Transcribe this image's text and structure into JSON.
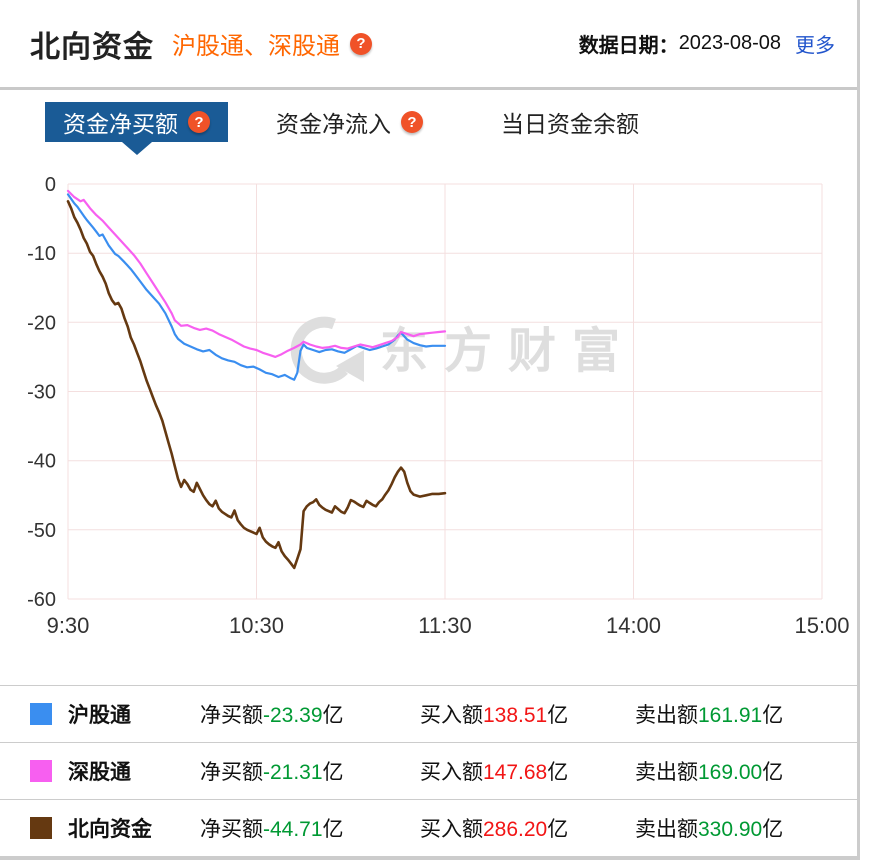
{
  "header": {
    "title": "北向资金",
    "subtitle": "沪股通、深股通",
    "date_label": "数据日期：",
    "date_value": "2023-08-08",
    "more_label": "更多"
  },
  "icons": {
    "help": "?"
  },
  "tabs": {
    "tab1": {
      "label": "资金净买额",
      "active": true
    },
    "tab2": {
      "label": "资金净流入",
      "active": false
    },
    "tab3": {
      "label": "当日资金余额",
      "active": false
    }
  },
  "chart_data": {
    "type": "line",
    "watermark": "东方财富",
    "ylim": [
      -60,
      0
    ],
    "xlim": [
      0,
      240
    ],
    "y_ticks": [
      0,
      -10,
      -20,
      -30,
      -40,
      -50,
      -60
    ],
    "x_ticks": [
      {
        "t": 0,
        "label": "9:30"
      },
      {
        "t": 60,
        "label": "10:30"
      },
      {
        "t": 120,
        "label": "11:30"
      },
      {
        "t": 180,
        "label": "14:00"
      },
      {
        "t": 240,
        "label": "15:00"
      }
    ],
    "unit": "亿",
    "series": [
      {
        "name": "沪股通",
        "color": "#3a8ef0",
        "width": 2.2,
        "points": [
          [
            0,
            -1.5
          ],
          [
            2,
            -2.8
          ],
          [
            3,
            -3.3
          ],
          [
            5,
            -4.6
          ],
          [
            6,
            -5.2
          ],
          [
            8,
            -6.3
          ],
          [
            9,
            -6.9
          ],
          [
            10,
            -7.5
          ],
          [
            11,
            -7.3
          ],
          [
            13,
            -8.9
          ],
          [
            15,
            -10.1
          ],
          [
            16,
            -10.4
          ],
          [
            18,
            -11.3
          ],
          [
            20,
            -12.3
          ],
          [
            21,
            -12.9
          ],
          [
            23,
            -14.1
          ],
          [
            25,
            -15.3
          ],
          [
            27,
            -16.3
          ],
          [
            29,
            -17.3
          ],
          [
            31,
            -18.7
          ],
          [
            33,
            -20.6
          ],
          [
            34,
            -21.7
          ],
          [
            35,
            -22.4
          ],
          [
            37,
            -23.1
          ],
          [
            39,
            -23.5
          ],
          [
            41,
            -23.9
          ],
          [
            43,
            -24.2
          ],
          [
            45,
            -24.0
          ],
          [
            47,
            -24.7
          ],
          [
            49,
            -25.2
          ],
          [
            51,
            -25.5
          ],
          [
            53,
            -25.7
          ],
          [
            55,
            -26.2
          ],
          [
            57,
            -26.5
          ],
          [
            59,
            -26.4
          ],
          [
            61,
            -26.8
          ],
          [
            63,
            -27.3
          ],
          [
            65,
            -27.5
          ],
          [
            67,
            -27.9
          ],
          [
            69,
            -27.6
          ],
          [
            71,
            -28.1
          ],
          [
            72,
            -28.3
          ],
          [
            73,
            -27.3
          ],
          [
            74,
            -24.1
          ],
          [
            75,
            -23.2
          ],
          [
            76,
            -23.7
          ],
          [
            78,
            -24.0
          ],
          [
            80,
            -24.3
          ],
          [
            82,
            -24.0
          ],
          [
            84,
            -23.9
          ],
          [
            86,
            -24.2
          ],
          [
            88,
            -24.4
          ],
          [
            90,
            -23.9
          ],
          [
            92,
            -23.4
          ],
          [
            94,
            -23.7
          ],
          [
            96,
            -24.0
          ],
          [
            98,
            -23.8
          ],
          [
            100,
            -23.5
          ],
          [
            102,
            -23.2
          ],
          [
            104,
            -22.5
          ],
          [
            105,
            -21.9
          ],
          [
            106,
            -21.5
          ],
          [
            107,
            -22.0
          ],
          [
            108,
            -22.5
          ],
          [
            110,
            -23.0
          ],
          [
            112,
            -23.3
          ],
          [
            114,
            -23.5
          ],
          [
            116,
            -23.4
          ],
          [
            118,
            -23.4
          ],
          [
            120,
            -23.39
          ]
        ]
      },
      {
        "name": "深股通",
        "color": "#f75ff0",
        "width": 2.2,
        "points": [
          [
            0,
            -1.0
          ],
          [
            2,
            -1.9
          ],
          [
            4,
            -2.5
          ],
          [
            5,
            -2.3
          ],
          [
            7,
            -3.5
          ],
          [
            9,
            -4.5
          ],
          [
            11,
            -5.3
          ],
          [
            13,
            -6.3
          ],
          [
            15,
            -7.3
          ],
          [
            17,
            -8.3
          ],
          [
            19,
            -9.3
          ],
          [
            21,
            -10.3
          ],
          [
            23,
            -11.5
          ],
          [
            25,
            -12.9
          ],
          [
            27,
            -14.3
          ],
          [
            29,
            -15.7
          ],
          [
            31,
            -17.1
          ],
          [
            33,
            -18.7
          ],
          [
            34,
            -19.7
          ],
          [
            36,
            -20.5
          ],
          [
            38,
            -20.4
          ],
          [
            40,
            -20.8
          ],
          [
            42,
            -21.1
          ],
          [
            44,
            -20.9
          ],
          [
            46,
            -21.2
          ],
          [
            48,
            -21.7
          ],
          [
            50,
            -22.1
          ],
          [
            52,
            -22.5
          ],
          [
            54,
            -23.0
          ],
          [
            56,
            -23.5
          ],
          [
            58,
            -23.8
          ],
          [
            60,
            -24.0
          ],
          [
            62,
            -24.4
          ],
          [
            64,
            -24.7
          ],
          [
            66,
            -25.0
          ],
          [
            68,
            -24.6
          ],
          [
            70,
            -24.1
          ],
          [
            72,
            -23.7
          ],
          [
            74,
            -23.2
          ],
          [
            75,
            -22.8
          ],
          [
            77,
            -23.2
          ],
          [
            79,
            -23.5
          ],
          [
            81,
            -23.7
          ],
          [
            83,
            -23.6
          ],
          [
            85,
            -23.4
          ],
          [
            87,
            -23.7
          ],
          [
            89,
            -23.8
          ],
          [
            91,
            -23.5
          ],
          [
            93,
            -23.2
          ],
          [
            95,
            -23.4
          ],
          [
            97,
            -23.6
          ],
          [
            99,
            -23.3
          ],
          [
            101,
            -23.0
          ],
          [
            103,
            -22.7
          ],
          [
            105,
            -22.1
          ],
          [
            106,
            -21.4
          ],
          [
            108,
            -21.7
          ],
          [
            110,
            -22.0
          ],
          [
            112,
            -21.7
          ],
          [
            114,
            -21.6
          ],
          [
            116,
            -21.5
          ],
          [
            118,
            -21.4
          ],
          [
            120,
            -21.31
          ]
        ]
      },
      {
        "name": "北向资金",
        "color": "#653911",
        "width": 2.6,
        "points": [
          [
            0,
            -2.5
          ],
          [
            1,
            -3.5
          ],
          [
            2,
            -4.8
          ],
          [
            3,
            -5.6
          ],
          [
            4,
            -6.6
          ],
          [
            5,
            -7.8
          ],
          [
            6,
            -8.6
          ],
          [
            7,
            -9.8
          ],
          [
            8,
            -10.4
          ],
          [
            9,
            -11.6
          ],
          [
            10,
            -12.6
          ],
          [
            11,
            -13.4
          ],
          [
            12,
            -14.4
          ],
          [
            13,
            -15.8
          ],
          [
            14,
            -16.8
          ],
          [
            15,
            -17.4
          ],
          [
            16,
            -17.2
          ],
          [
            17,
            -18.0
          ],
          [
            18,
            -19.4
          ],
          [
            19,
            -20.6
          ],
          [
            20,
            -22.2
          ],
          [
            21,
            -23.2
          ],
          [
            22,
            -24.4
          ],
          [
            23,
            -25.6
          ],
          [
            24,
            -27.0
          ],
          [
            25,
            -28.4
          ],
          [
            26,
            -29.6
          ],
          [
            27,
            -30.8
          ],
          [
            28,
            -32.0
          ],
          [
            29,
            -33.0
          ],
          [
            30,
            -34.2
          ],
          [
            31,
            -35.8
          ],
          [
            32,
            -37.4
          ],
          [
            33,
            -39.0
          ],
          [
            34,
            -40.8
          ],
          [
            35,
            -42.6
          ],
          [
            36,
            -43.8
          ],
          [
            37,
            -42.8
          ],
          [
            38,
            -43.4
          ],
          [
            39,
            -44.2
          ],
          [
            40,
            -44.5
          ],
          [
            41,
            -43.2
          ],
          [
            42,
            -44.1
          ],
          [
            43,
            -45.0
          ],
          [
            44,
            -45.7
          ],
          [
            45,
            -46.3
          ],
          [
            46,
            -46.6
          ],
          [
            47,
            -45.8
          ],
          [
            48,
            -46.9
          ],
          [
            49,
            -47.4
          ],
          [
            50,
            -47.7
          ],
          [
            51,
            -48.0
          ],
          [
            52,
            -48.2
          ],
          [
            53,
            -47.2
          ],
          [
            54,
            -48.6
          ],
          [
            55,
            -49.2
          ],
          [
            56,
            -49.7
          ],
          [
            57,
            -50.0
          ],
          [
            58,
            -50.2
          ],
          [
            59,
            -50.4
          ],
          [
            60,
            -50.6
          ],
          [
            61,
            -49.7
          ],
          [
            62,
            -51.1
          ],
          [
            63,
            -51.7
          ],
          [
            64,
            -52.1
          ],
          [
            65,
            -52.4
          ],
          [
            66,
            -52.6
          ],
          [
            67,
            -51.8
          ],
          [
            68,
            -53.1
          ],
          [
            69,
            -53.8
          ],
          [
            70,
            -54.3
          ],
          [
            71,
            -54.9
          ],
          [
            72,
            -55.5
          ],
          [
            73,
            -54.2
          ],
          [
            74,
            -52.8
          ],
          [
            75,
            -47.3
          ],
          [
            76,
            -46.6
          ],
          [
            77,
            -46.2
          ],
          [
            78,
            -46.0
          ],
          [
            79,
            -45.6
          ],
          [
            80,
            -46.4
          ],
          [
            81,
            -46.8
          ],
          [
            82,
            -47.1
          ],
          [
            84,
            -47.5
          ],
          [
            85,
            -46.6
          ],
          [
            86,
            -47.0
          ],
          [
            87,
            -47.4
          ],
          [
            88,
            -47.6
          ],
          [
            89,
            -46.8
          ],
          [
            90,
            -45.7
          ],
          [
            91,
            -45.9
          ],
          [
            92,
            -46.2
          ],
          [
            93,
            -46.5
          ],
          [
            94,
            -46.7
          ],
          [
            95,
            -45.8
          ],
          [
            96,
            -46.1
          ],
          [
            97,
            -46.4
          ],
          [
            98,
            -46.6
          ],
          [
            99,
            -46.0
          ],
          [
            100,
            -45.6
          ],
          [
            101,
            -44.9
          ],
          [
            102,
            -44.3
          ],
          [
            103,
            -43.4
          ],
          [
            104,
            -42.4
          ],
          [
            105,
            -41.6
          ],
          [
            106,
            -41.0
          ],
          [
            107,
            -41.6
          ],
          [
            108,
            -43.2
          ],
          [
            109,
            -44.4
          ],
          [
            110,
            -44.9
          ],
          [
            112,
            -45.2
          ],
          [
            114,
            -45.0
          ],
          [
            116,
            -44.8
          ],
          [
            118,
            -44.8
          ],
          [
            120,
            -44.71
          ]
        ]
      }
    ]
  },
  "legend": {
    "rows": [
      {
        "name": "沪股通",
        "color": "#3a8ef0",
        "cells": [
          {
            "label": "净买额",
            "value": "-23.39",
            "unit": "亿",
            "tone": "green"
          },
          {
            "label": "买入额",
            "value": "138.51",
            "unit": "亿",
            "tone": "red"
          },
          {
            "label": "卖出额",
            "value": "161.91",
            "unit": "亿",
            "tone": "green"
          }
        ]
      },
      {
        "name": "深股通",
        "color": "#f75ff0",
        "cells": [
          {
            "label": "净买额",
            "value": "-21.31",
            "unit": "亿",
            "tone": "green"
          },
          {
            "label": "买入额",
            "value": "147.68",
            "unit": "亿",
            "tone": "red"
          },
          {
            "label": "卖出额",
            "value": "169.00",
            "unit": "亿",
            "tone": "green"
          }
        ]
      },
      {
        "name": "北向资金",
        "color": "#653911",
        "cells": [
          {
            "label": "净买额",
            "value": "-44.71",
            "unit": "亿",
            "tone": "green"
          },
          {
            "label": "买入额",
            "value": "286.20",
            "unit": "亿",
            "tone": "red"
          },
          {
            "label": "卖出额",
            "value": "330.90",
            "unit": "亿",
            "tone": "green"
          }
        ]
      }
    ]
  }
}
